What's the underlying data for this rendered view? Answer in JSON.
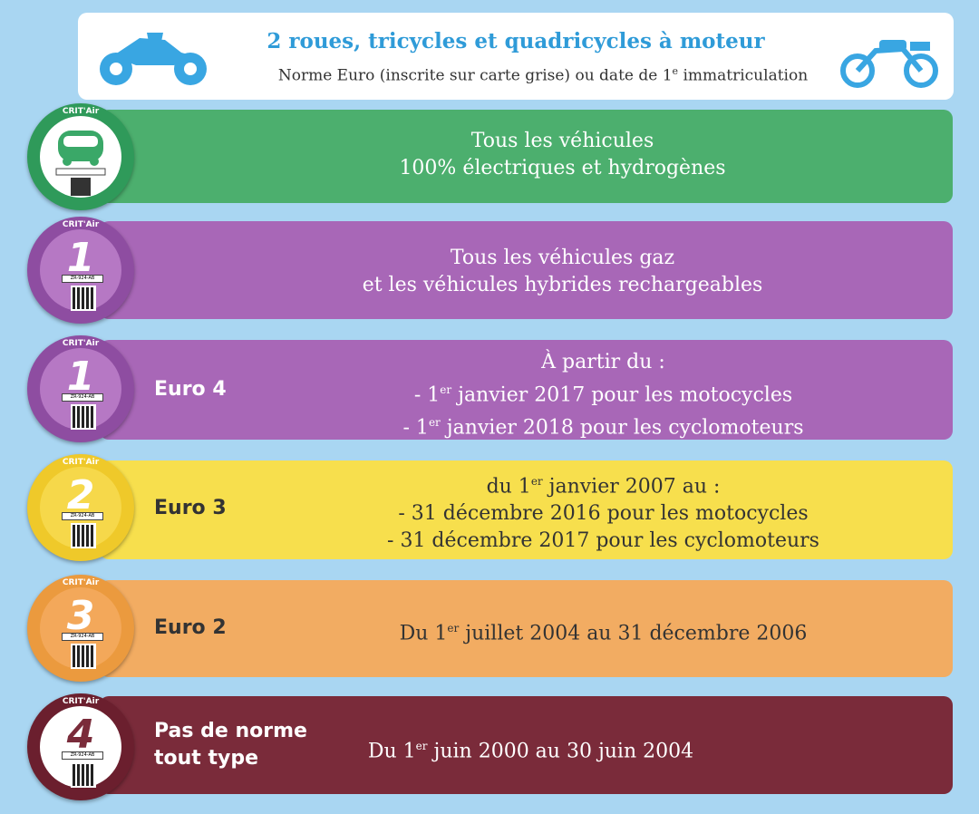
{
  "header": {
    "title": "2 roues, tricycles et quadricycles à moteur",
    "subtitle_pre": "Norme Euro (inscrite sur carte grise) ou date de 1",
    "subtitle_sup": "e",
    "subtitle_post": " immatriculation",
    "icons": [
      "motorcycle-icon",
      "moped-icon"
    ]
  },
  "colors": {
    "background": "#a9d6f2",
    "header_title": "#2f9bd8",
    "electric": "#4caf6e",
    "crit1": "#a867b7",
    "crit2": "#f7df4d",
    "crit3": "#f2ac62",
    "crit4": "#7a2b3a"
  },
  "badge_text": {
    "crit": "CRIT'Air",
    "plate": "ZR-924-AB"
  },
  "rows": [
    {
      "badge": "electric",
      "line1": "Tous les véhicules",
      "line2": "100% électriques et hydrogènes"
    },
    {
      "badge": "1",
      "line1": "Tous les véhicules gaz",
      "line2": "et les véhicules hybrides rechargeables"
    },
    {
      "badge": "1",
      "euro": "Euro 4",
      "line1": "À partir du :",
      "line2_pre": "- 1",
      "line2_sup": "er",
      "line2_post": " janvier 2017 pour les motocycles",
      "line3_pre": "- 1",
      "line3_sup": "er",
      "line3_post": " janvier 2018 pour les cyclomoteurs"
    },
    {
      "badge": "2",
      "euro": "Euro 3",
      "line1_pre": "du 1",
      "line1_sup": "er",
      "line1_post": " janvier 2007 au :",
      "line2": "- 31 décembre 2016 pour les motocycles",
      "line3": "- 31 décembre 2017 pour les cyclomoteurs"
    },
    {
      "badge": "3",
      "euro": "Euro 2",
      "line1_pre": "Du 1",
      "line1_sup": "er",
      "line1_post": " juillet 2004 au 31 décembre 2006"
    },
    {
      "badge": "4",
      "euro_line1": "Pas de norme",
      "euro_line2": "tout type",
      "line1_pre": "Du 1",
      "line1_sup": "er",
      "line1_post": " juin 2000 au 30 juin 2004"
    }
  ]
}
